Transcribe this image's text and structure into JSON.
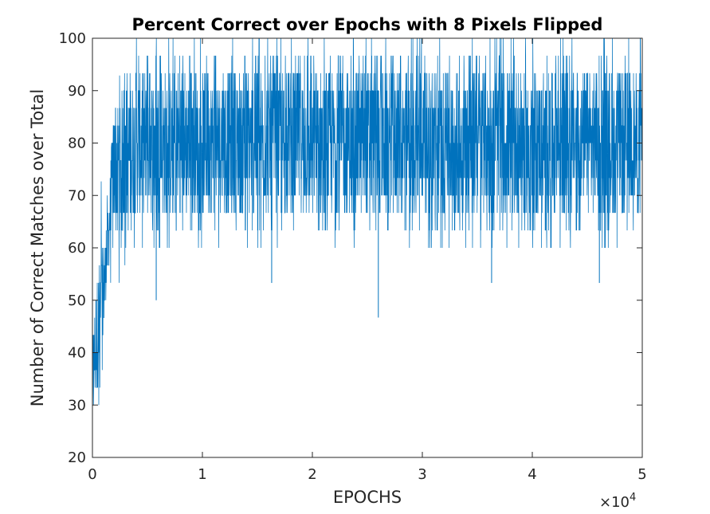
{
  "chart_data": {
    "type": "line",
    "title": "Percent Correct over Epochs with 8 Pixels Flipped",
    "xlabel": "EPOCHS",
    "ylabel": "Number of Correct Matches over Total",
    "xlim": [
      0,
      50000
    ],
    "ylim": [
      20,
      100
    ],
    "x_ticks": [
      0,
      10000,
      20000,
      30000,
      40000,
      50000
    ],
    "x_tick_labels": [
      "0",
      "1",
      "2",
      "3",
      "4",
      "5"
    ],
    "x_exponent_label": "×10",
    "x_exponent_power": "4",
    "y_ticks": [
      20,
      30,
      40,
      50,
      60,
      70,
      80,
      90,
      100
    ],
    "y_tick_labels": [
      "20",
      "30",
      "40",
      "50",
      "60",
      "70",
      "80",
      "90",
      "100"
    ],
    "grid": false,
    "series_color": "#0072BD",
    "series": [
      {
        "x": [
          0,
          250,
          500,
          750,
          1000,
          1250,
          1500,
          1750,
          2000,
          2500,
          3000,
          3500,
          4000,
          5000,
          7500,
          10000,
          15000,
          20000,
          25000,
          30000,
          35000,
          40000,
          45000,
          50000
        ],
        "mean": [
          32,
          38,
          45,
          50,
          56,
          60,
          64,
          70,
          76,
          79,
          80,
          80,
          80.5,
          81,
          81,
          81,
          81,
          81,
          81,
          81,
          81,
          81,
          81,
          81
        ],
        "low": [
          23.3,
          26.7,
          26.7,
          30,
          36.7,
          40,
          46.7,
          50,
          53.3,
          53.3,
          56.7,
          56.7,
          56.7,
          60,
          60,
          60,
          60,
          60,
          60,
          60,
          60,
          60,
          60,
          60
        ],
        "high": [
          53.3,
          63.3,
          76.7,
          73.3,
          70,
          70,
          73.3,
          80,
          86.7,
          93.3,
          96.7,
          100,
          100,
          100,
          100,
          100,
          100,
          100,
          100,
          100,
          100,
          100,
          100,
          100
        ],
        "core_low": [
          26.7,
          30,
          33.3,
          36.7,
          43.3,
          50,
          56.7,
          63.3,
          63.3,
          63.3,
          63.3,
          63.3,
          66.7,
          66.7,
          66.7,
          66.7,
          66.7,
          66.7,
          66.7,
          66.7,
          66.7,
          66.7,
          66.7,
          66.7
        ],
        "core_high": [
          43.3,
          50,
          56.7,
          60,
          60,
          63.3,
          70,
          83.3,
          86.7,
          90,
          90,
          93.3,
          93.3,
          93.3,
          93.3,
          93.3,
          93.3,
          93.3,
          93.3,
          93.3,
          93.3,
          93.3,
          93.3,
          93.3
        ]
      }
    ],
    "notable_minima": [
      {
        "x": 26000,
        "y": 46.7
      },
      {
        "x": 16300,
        "y": 53.3
      },
      {
        "x": 36300,
        "y": 53.3
      },
      {
        "x": 46100,
        "y": 53.3
      },
      {
        "x": 5800,
        "y": 50
      }
    ]
  }
}
